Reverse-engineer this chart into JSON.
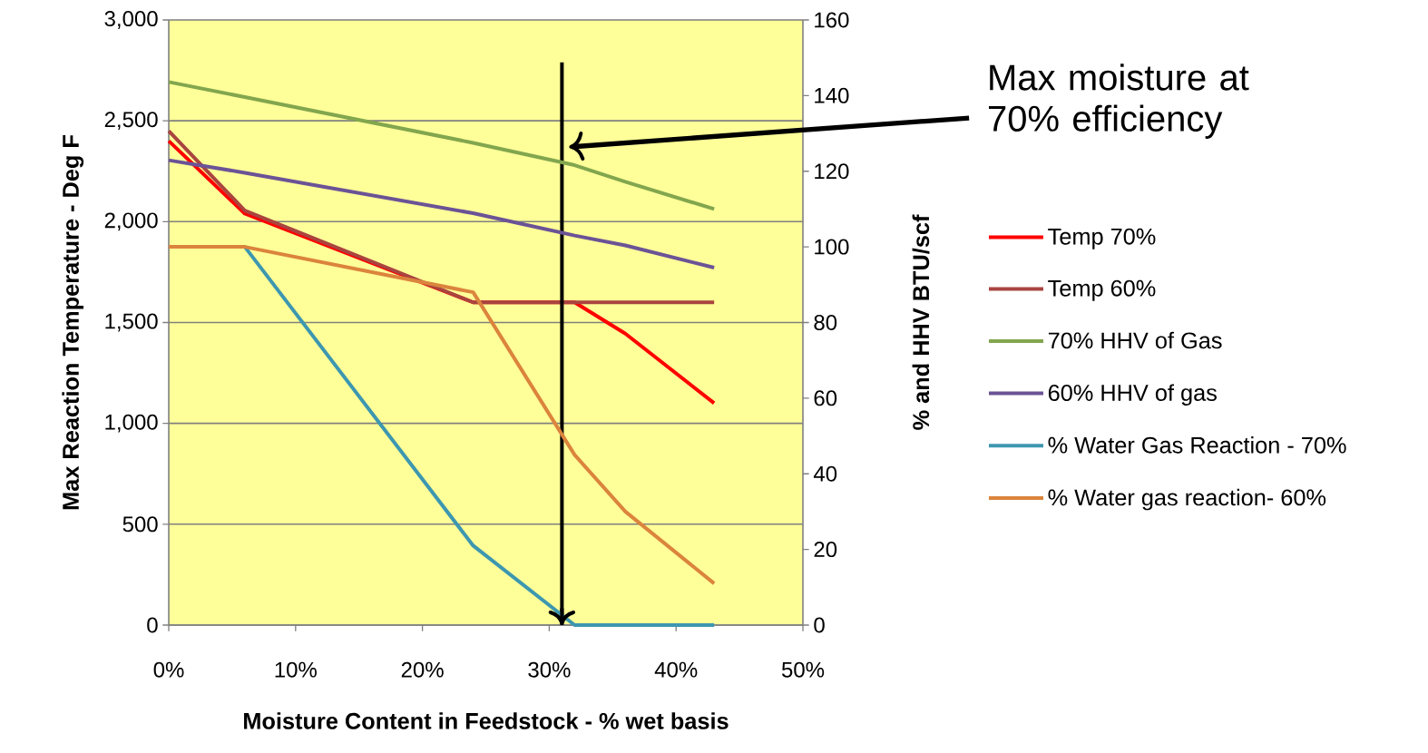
{
  "chart_data": {
    "type": "line",
    "xlabel": "Moisture Content in Feedstock - % wet basis",
    "ylabel": "Max Reaction Temperature - Deg F",
    "y2label": "% and HHV BTU/scf",
    "x": [
      0,
      6,
      24,
      32,
      36,
      43
    ],
    "series": [
      {
        "name": "Temp 70%",
        "color": "#ff0000",
        "values": [
          2400,
          2040,
          1600,
          1600,
          1445,
          1100
        ]
      },
      {
        "name": "Temp 60%",
        "color": "#a9443f",
        "values": [
          2450,
          2055,
          1600,
          1600,
          1600,
          1600
        ]
      },
      {
        "name": "70% HHV of Gas",
        "color": "#82a64e",
        "axis": "y2",
        "values": [
          143.6,
          139.6,
          127.5,
          121.6,
          117.2,
          110
        ]
      },
      {
        "name": "60% HHV of gas",
        "color": "#6b5396",
        "axis": "y2",
        "values": [
          122.9,
          119.6,
          108.9,
          103,
          100.4,
          94.5
        ]
      },
      {
        "name": "% Water Gas Reaction - 70%",
        "color": "#3d97b0",
        "axis": "y2",
        "values": [
          100,
          100,
          21,
          0,
          0,
          0
        ]
      },
      {
        "name": "% Water gas reaction- 60%",
        "color": "#db843d",
        "axis": "y2",
        "values": [
          100,
          100,
          88,
          45,
          30,
          11
        ]
      }
    ],
    "xlim": [
      0,
      50
    ],
    "xticks": [
      {
        "value": 0,
        "label": "0%"
      },
      {
        "value": 10,
        "label": "10%"
      },
      {
        "value": 20,
        "label": "20%"
      },
      {
        "value": 30,
        "label": "30%"
      },
      {
        "value": 40,
        "label": "40%"
      },
      {
        "value": 50,
        "label": "50%"
      }
    ],
    "ylim": [
      0,
      3000
    ],
    "yticks": [
      0,
      500,
      {
        "value": 1000,
        "label": "1,000"
      },
      {
        "value": 1500,
        "label": "1,500"
      },
      {
        "value": 2000,
        "label": "2,000"
      },
      {
        "value": 2500,
        "label": "2,500"
      },
      {
        "value": 3000,
        "label": "3,000"
      }
    ],
    "y2lim": [
      0,
      160
    ],
    "y2ticks": [
      0,
      20,
      40,
      60,
      80,
      100,
      120,
      140,
      160
    ],
    "ref_lines": [
      {
        "axis": "x",
        "value": 31,
        "color": "#000000"
      }
    ],
    "annotations": [
      "Max moisture at 70% efficiency"
    ],
    "grid": "y",
    "legend": "right",
    "marker": "none",
    "line_style": "solid"
  }
}
